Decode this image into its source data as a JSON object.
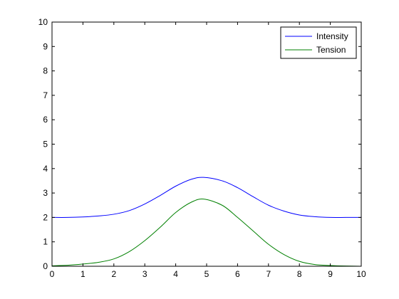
{
  "chart_data": {
    "type": "line",
    "xlim": [
      0,
      10
    ],
    "ylim": [
      0,
      10
    ],
    "x_ticks": [
      0,
      1,
      2,
      3,
      4,
      5,
      6,
      7,
      8,
      9,
      10
    ],
    "y_ticks": [
      0,
      1,
      2,
      3,
      4,
      5,
      6,
      7,
      8,
      9,
      10
    ],
    "x_tick_labels": [
      "0",
      "1",
      "2",
      "3",
      "4",
      "5",
      "6",
      "7",
      "8",
      "9",
      "10"
    ],
    "y_tick_labels": [
      "0",
      "1",
      "2",
      "3",
      "4",
      "5",
      "6",
      "7",
      "8",
      "9",
      "10"
    ],
    "grid": false,
    "legend_position": "top-right",
    "series": [
      {
        "name": "Intensity",
        "color": "#0000ff",
        "x": [
          0,
          0.5,
          1,
          1.5,
          2,
          2.5,
          3,
          3.5,
          4,
          4.5,
          4.9,
          5.5,
          6,
          6.5,
          7,
          7.5,
          8,
          8.5,
          9,
          9.5,
          10
        ],
        "y": [
          2.0,
          2.0,
          2.02,
          2.06,
          2.13,
          2.28,
          2.55,
          2.9,
          3.28,
          3.56,
          3.64,
          3.5,
          3.22,
          2.85,
          2.5,
          2.26,
          2.1,
          2.03,
          2.0,
          2.0,
          2.0
        ]
      },
      {
        "name": "Tension",
        "color": "#008000",
        "x": [
          0,
          0.5,
          1,
          1.5,
          2,
          2.5,
          3,
          3.5,
          4,
          4.5,
          4.9,
          5.5,
          6,
          6.5,
          7,
          7.5,
          8,
          8.5,
          9,
          9.5,
          10
        ],
        "y": [
          0.02,
          0.04,
          0.09,
          0.16,
          0.3,
          0.6,
          1.05,
          1.6,
          2.2,
          2.62,
          2.75,
          2.5,
          2.0,
          1.45,
          0.9,
          0.48,
          0.2,
          0.07,
          0.03,
          0.01,
          0.0
        ]
      }
    ]
  }
}
